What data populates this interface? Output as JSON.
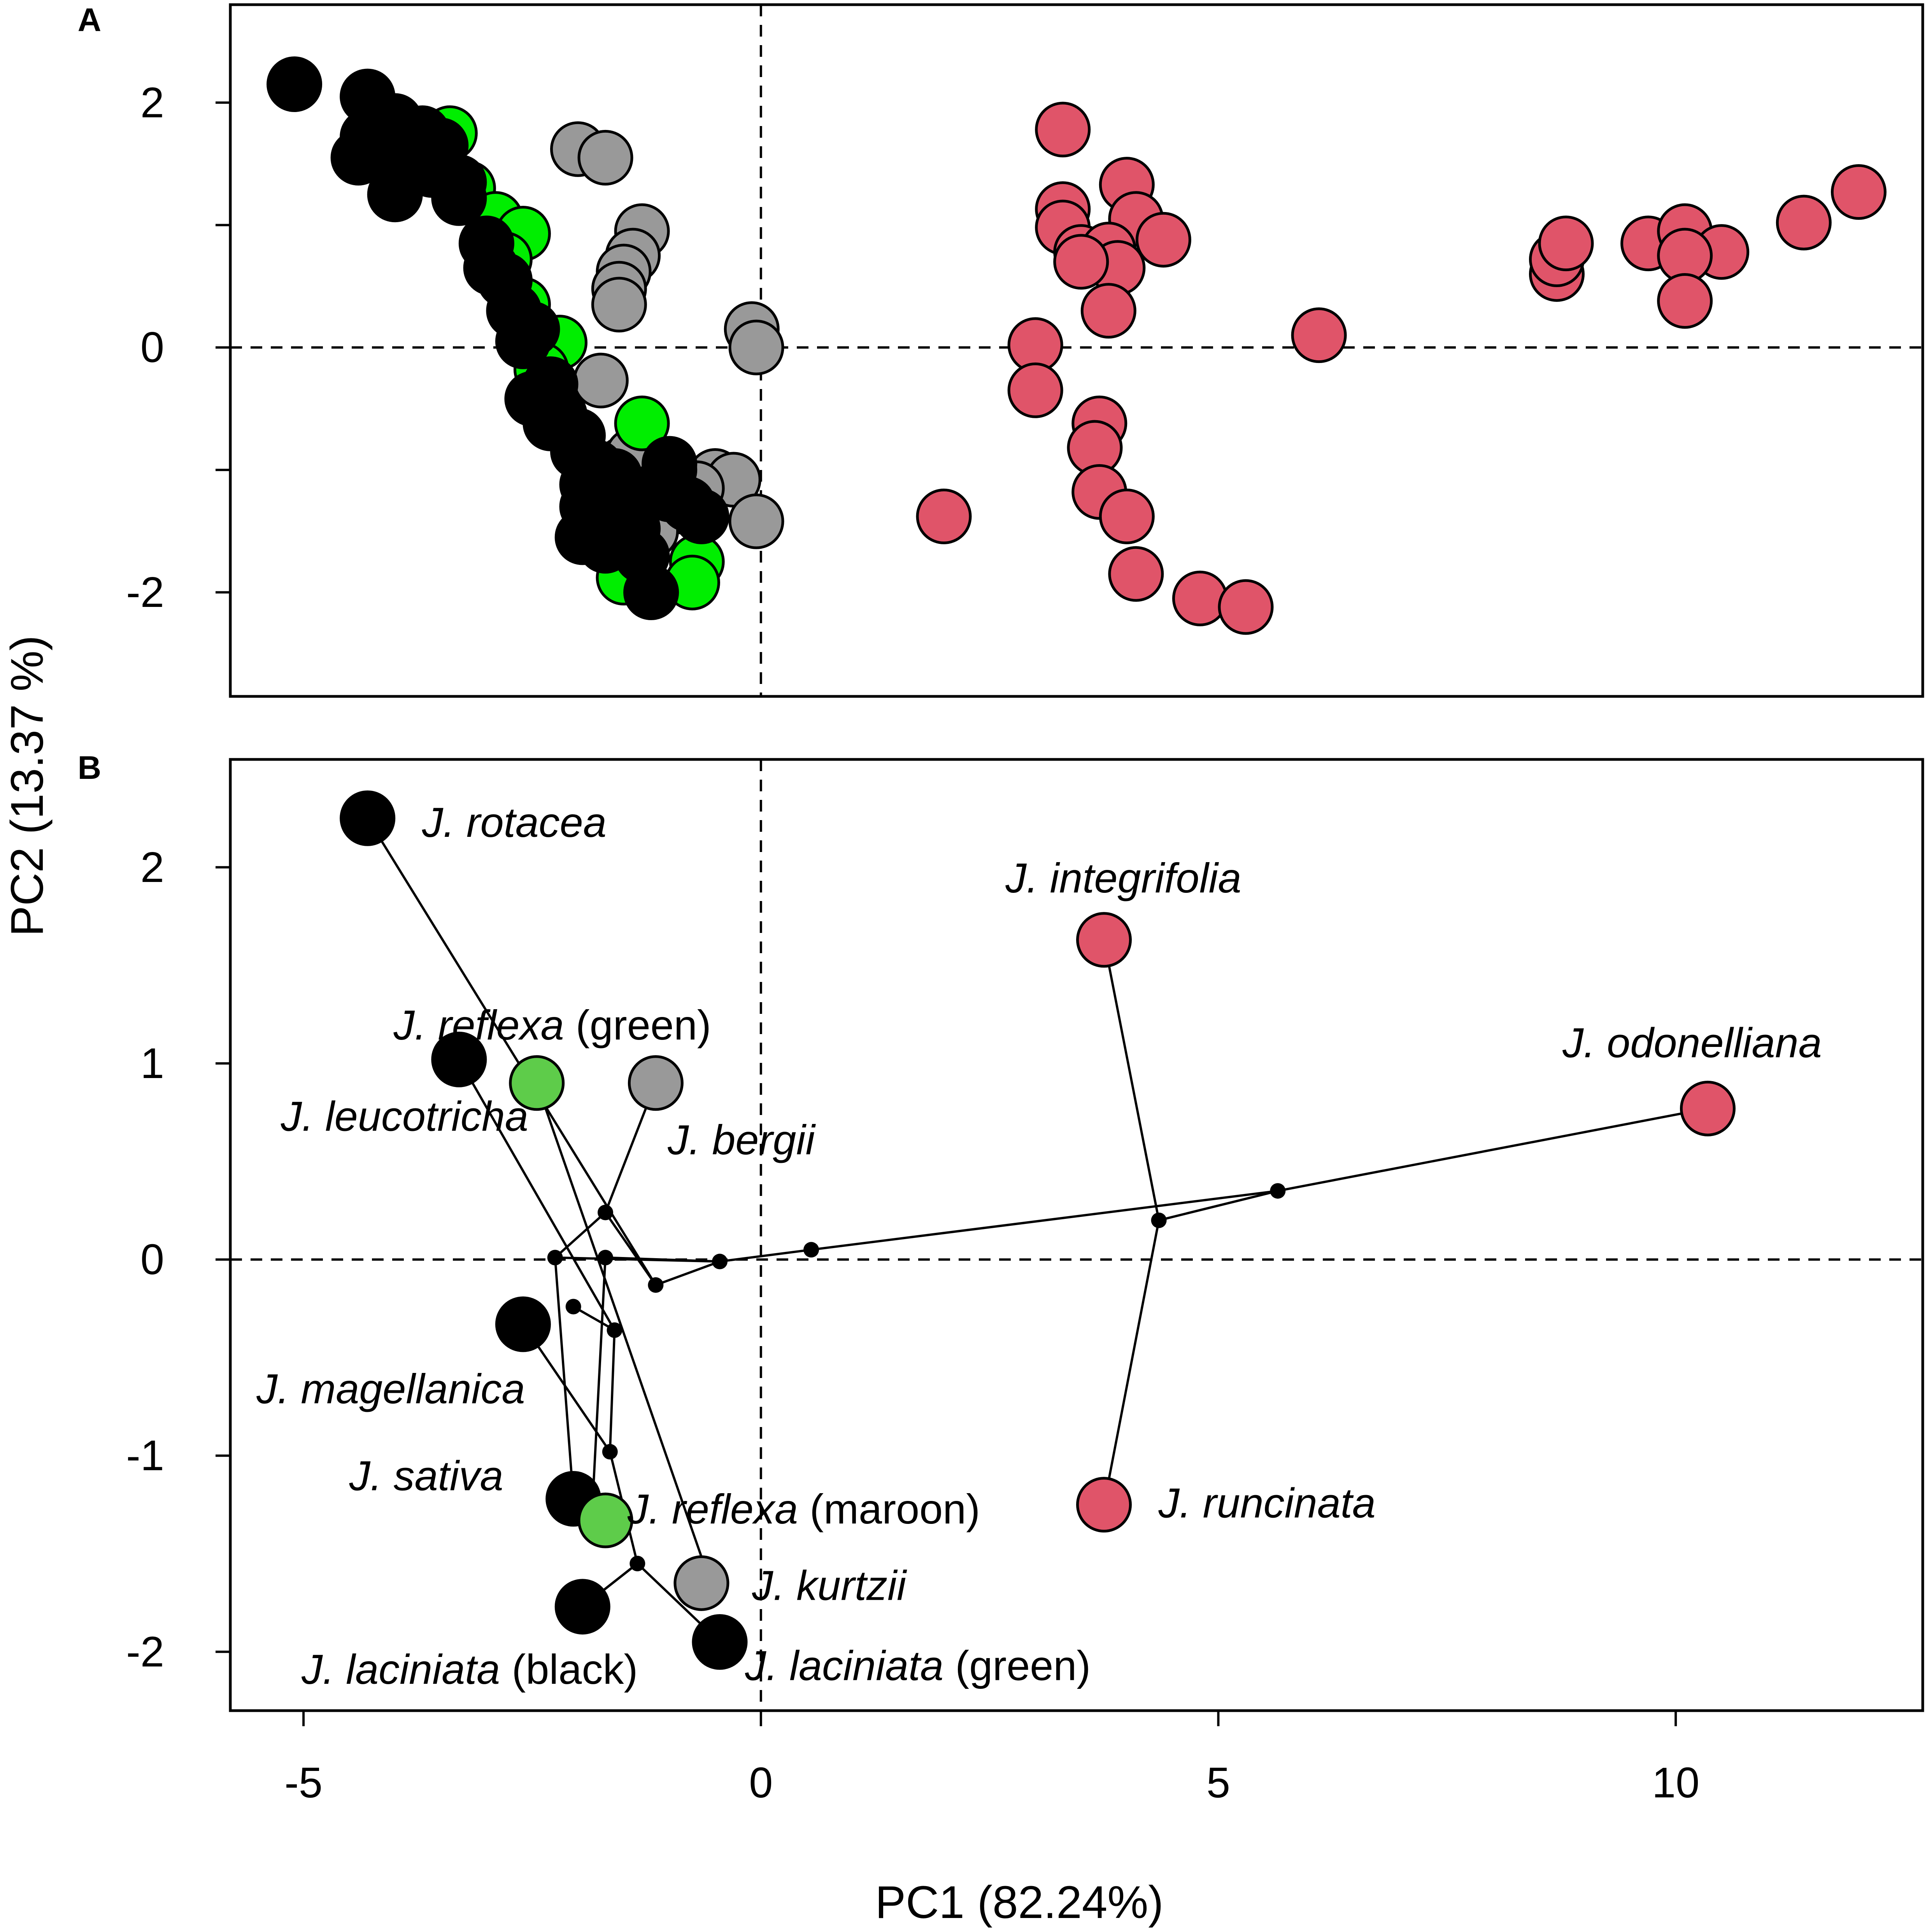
{
  "axes": {
    "xlabel": "PC1 (82.24%)",
    "ylabel": "PC2 (13.37 %)",
    "xlim": [
      -5.8,
      12.7
    ],
    "x_ticks": [
      {
        "value": -5,
        "label": "-5"
      },
      {
        "value": 0,
        "label": "0"
      },
      {
        "value": 5,
        "label": "5"
      },
      {
        "value": 10,
        "label": "10"
      }
    ]
  },
  "chart_data": [
    {
      "panel": "A",
      "type": "scatter",
      "title": "A",
      "xlabel": "PC1 (82.24%)",
      "ylabel": "PC2 (13.37 %)",
      "xlim": [
        -5.8,
        12.7
      ],
      "ylim": [
        -2.85,
        2.8
      ],
      "y_ticks": [
        {
          "value": 2,
          "label": "2"
        },
        {
          "value": 1,
          "label": ""
        },
        {
          "value": 0,
          "label": "0"
        },
        {
          "value": -1,
          "label": ""
        },
        {
          "value": -2,
          "label": "-2"
        }
      ],
      "reference_lines": {
        "x": 0,
        "y": 0,
        "style": "dashed"
      },
      "series": [
        {
          "name": "gray",
          "color": "#999999",
          "points": [
            [
              -2.0,
              1.62
            ],
            [
              -1.7,
              1.55
            ],
            [
              -1.3,
              0.95
            ],
            [
              -1.4,
              0.75
            ],
            [
              -1.5,
              0.62
            ],
            [
              -1.55,
              0.48
            ],
            [
              -1.55,
              0.35
            ],
            [
              -0.1,
              0.15
            ],
            [
              -0.05,
              0.0
            ],
            [
              -1.75,
              -0.27
            ],
            [
              -1.5,
              -0.95
            ],
            [
              -1.4,
              -0.88
            ],
            [
              -0.5,
              -1.05
            ],
            [
              -0.3,
              -1.08
            ],
            [
              -0.7,
              -1.15
            ],
            [
              -0.9,
              -1.25
            ],
            [
              -0.85,
              -1.3
            ],
            [
              -0.05,
              -1.42
            ],
            [
              -1.2,
              -1.5
            ]
          ]
        },
        {
          "name": "green",
          "color": "#00ee00",
          "points": [
            [
              -3.4,
              1.75
            ],
            [
              -3.2,
              1.3
            ],
            [
              -2.9,
              1.05
            ],
            [
              -2.6,
              0.93
            ],
            [
              -2.8,
              0.72
            ],
            [
              -2.6,
              0.35
            ],
            [
              -2.2,
              0.04
            ],
            [
              -2.4,
              -0.18
            ],
            [
              -1.3,
              -0.62
            ],
            [
              -1.0,
              -1.0
            ],
            [
              -0.7,
              -1.75
            ],
            [
              -0.75,
              -1.92
            ],
            [
              -1.5,
              -1.88
            ]
          ]
        },
        {
          "name": "black",
          "color": "#000000",
          "points": [
            [
              -5.1,
              2.15
            ],
            [
              -4.3,
              2.05
            ],
            [
              -4.0,
              1.85
            ],
            [
              -3.7,
              1.75
            ],
            [
              -4.3,
              1.72
            ],
            [
              -3.5,
              1.65
            ],
            [
              -3.9,
              1.55
            ],
            [
              -4.4,
              1.55
            ],
            [
              -3.6,
              1.45
            ],
            [
              -3.3,
              1.35
            ],
            [
              -4.0,
              1.25
            ],
            [
              -3.3,
              1.22
            ],
            [
              -3.0,
              0.85
            ],
            [
              -2.95,
              0.65
            ],
            [
              -2.8,
              0.55
            ],
            [
              -2.7,
              0.3
            ],
            [
              -2.5,
              0.15
            ],
            [
              -2.6,
              0.05
            ],
            [
              -2.3,
              -0.3
            ],
            [
              -2.5,
              -0.42
            ],
            [
              -2.2,
              -0.55
            ],
            [
              -2.3,
              -0.62
            ],
            [
              -2.0,
              -0.72
            ],
            [
              -2.0,
              -0.85
            ],
            [
              -1.8,
              -0.98
            ],
            [
              -1.6,
              -1.05
            ],
            [
              -1.9,
              -1.12
            ],
            [
              -1.0,
              -0.95
            ],
            [
              -1.6,
              -1.2
            ],
            [
              -1.3,
              -1.2
            ],
            [
              -1.9,
              -1.3
            ],
            [
              -1.0,
              -1.2
            ],
            [
              -0.8,
              -1.28
            ],
            [
              -0.65,
              -1.38
            ],
            [
              -1.4,
              -1.48
            ],
            [
              -1.95,
              -1.55
            ],
            [
              -1.7,
              -1.62
            ],
            [
              -1.3,
              -1.7
            ],
            [
              -1.2,
              -2.0
            ]
          ]
        },
        {
          "name": "red",
          "color": "#e05469",
          "points": [
            [
              3.3,
              1.78
            ],
            [
              4.0,
              1.33
            ],
            [
              3.3,
              1.13
            ],
            [
              4.1,
              1.05
            ],
            [
              3.3,
              0.98
            ],
            [
              4.4,
              0.88
            ],
            [
              3.5,
              0.78
            ],
            [
              3.8,
              0.8
            ],
            [
              3.9,
              0.65
            ],
            [
              3.5,
              0.7
            ],
            [
              3.8,
              0.3
            ],
            [
              3.0,
              0.02
            ],
            [
              3.0,
              -0.35
            ],
            [
              3.7,
              -0.62
            ],
            [
              3.65,
              -0.82
            ],
            [
              3.7,
              -1.18
            ],
            [
              4.0,
              -1.38
            ],
            [
              4.1,
              -1.85
            ],
            [
              4.8,
              -2.05
            ],
            [
              5.3,
              -2.12
            ],
            [
              2.0,
              -1.38
            ],
            [
              6.1,
              0.1
            ],
            [
              8.7,
              0.6
            ],
            [
              8.7,
              0.72
            ],
            [
              8.8,
              0.85
            ],
            [
              9.7,
              0.85
            ],
            [
              10.1,
              0.95
            ],
            [
              10.5,
              0.78
            ],
            [
              10.1,
              0.75
            ],
            [
              10.1,
              0.38
            ],
            [
              11.4,
              1.02
            ],
            [
              12.0,
              1.27
            ]
          ]
        }
      ]
    },
    {
      "panel": "B",
      "type": "scatter",
      "title": "B",
      "xlabel": "PC1 (82.24%)",
      "ylabel": "PC2 (13.37 %)",
      "xlim": [
        -5.8,
        12.7
      ],
      "ylim": [
        -2.3,
        2.55
      ],
      "y_ticks": [
        {
          "value": 2,
          "label": "2"
        },
        {
          "value": 1,
          "label": "1"
        },
        {
          "value": 0,
          "label": "0"
        },
        {
          "value": -1,
          "label": "-1"
        },
        {
          "value": -2,
          "label": "-2"
        }
      ],
      "reference_lines": {
        "x": 0,
        "y": 0,
        "style": "dashed"
      },
      "nodes": [
        {
          "x": -2.25,
          "y": 0.01
        },
        {
          "x": -1.7,
          "y": 0.24
        },
        {
          "x": -1.7,
          "y": 0.01
        },
        {
          "x": -1.15,
          "y": -0.13
        },
        {
          "x": -0.45,
          "y": -0.01
        },
        {
          "x": 0.55,
          "y": 0.05
        },
        {
          "x": 4.35,
          "y": 0.2
        },
        {
          "x": 5.65,
          "y": 0.35
        },
        {
          "x": -2.05,
          "y": -0.24
        },
        {
          "x": -1.6,
          "y": -0.36
        },
        {
          "x": -1.65,
          "y": -0.98
        },
        {
          "x": -1.35,
          "y": -1.55
        }
      ],
      "edges": [
        [
          -4.3,
          2.25,
          -1.15,
          -0.13
        ],
        [
          -3.3,
          1.02,
          -1.6,
          -0.36
        ],
        [
          -2.45,
          0.9,
          -0.55,
          -1.65
        ],
        [
          -1.15,
          0.9,
          -1.7,
          0.24
        ],
        [
          -1.7,
          0.24,
          -1.15,
          -0.13
        ],
        [
          -1.7,
          0.24,
          -2.25,
          0.01
        ],
        [
          -2.25,
          0.01,
          -0.45,
          -0.01
        ],
        [
          -1.7,
          0.01,
          -0.45,
          -0.01
        ],
        [
          -1.15,
          -0.13,
          -0.45,
          -0.01
        ],
        [
          -0.45,
          -0.01,
          0.55,
          0.05
        ],
        [
          0.55,
          0.05,
          5.65,
          0.35
        ],
        [
          5.65,
          0.35,
          10.35,
          0.77
        ],
        [
          3.75,
          1.63,
          4.35,
          0.2
        ],
        [
          4.35,
          0.2,
          3.75,
          -1.25
        ],
        [
          4.35,
          0.2,
          5.65,
          0.35
        ],
        [
          -2.6,
          -0.33,
          -1.65,
          -0.98
        ],
        [
          -2.25,
          0.01,
          -2.05,
          -1.22
        ],
        [
          -1.7,
          0.01,
          -1.85,
          -1.33
        ],
        [
          -2.05,
          -0.24,
          -1.6,
          -0.36
        ],
        [
          -1.6,
          -0.36,
          -1.65,
          -0.98
        ],
        [
          -1.65,
          -0.98,
          -1.35,
          -1.55
        ],
        [
          -1.35,
          -1.55,
          -1.95,
          -1.77
        ],
        [
          -1.35,
          -1.55,
          -0.45,
          -1.95
        ],
        [
          -1.95,
          -1.77,
          -1.35,
          -1.55
        ]
      ],
      "points": [
        {
          "x": -4.3,
          "y": 2.25,
          "color": "#000000",
          "name": "J. rotacea",
          "suffix": ""
        },
        {
          "x": 3.75,
          "y": 1.63,
          "color": "#e05469",
          "name": "J. integrifolia",
          "suffix": ""
        },
        {
          "x": 10.35,
          "y": 0.77,
          "color": "#e05469",
          "name": "J. odonelliana",
          "suffix": ""
        },
        {
          "x": -3.3,
          "y": 1.02,
          "color": "#000000",
          "name": "J. leucotricha",
          "suffix": ""
        },
        {
          "x": -2.45,
          "y": 0.9,
          "color": "#5ecc4a",
          "name": "J. reflexa",
          "suffix": " (green)"
        },
        {
          "x": -1.15,
          "y": 0.9,
          "color": "#999999",
          "name": "J. bergii",
          "suffix": ""
        },
        {
          "x": -2.6,
          "y": -0.33,
          "color": "#000000",
          "name": "J. magellanica",
          "suffix": ""
        },
        {
          "x": -2.05,
          "y": -1.22,
          "color": "#000000",
          "name": "J. sativa",
          "suffix": ""
        },
        {
          "x": -1.7,
          "y": -1.33,
          "color": "#5ecc4a",
          "name": "J. reflexa",
          "suffix": " (maroon)"
        },
        {
          "x": 3.75,
          "y": -1.25,
          "color": "#e05469",
          "name": "J. runcinata",
          "suffix": ""
        },
        {
          "x": -0.65,
          "y": -1.65,
          "color": "#999999",
          "name": "J. kurtzii",
          "suffix": ""
        },
        {
          "x": -1.95,
          "y": -1.77,
          "color": "#000000",
          "name": "J. laciniata",
          "suffix": " (black)"
        },
        {
          "x": -0.45,
          "y": -1.95,
          "color": "#000000",
          "name": "J. laciniata",
          "suffix": " (green)"
        }
      ]
    }
  ]
}
